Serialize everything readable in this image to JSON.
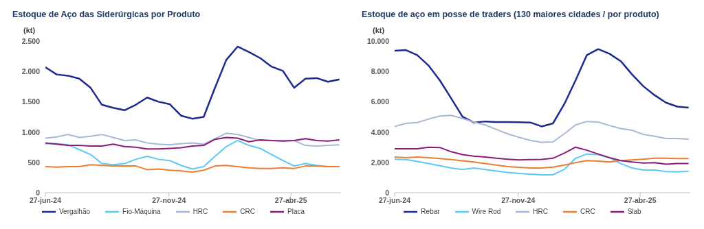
{
  "chart_data": [
    {
      "type": "line",
      "title": "Estoque de Aço das Siderúrgicas por Produto",
      "ylabel": "(kt)",
      "legend": "bottom",
      "grid": false,
      "marker": "none",
      "x": [
        "2024-06-27",
        "2024-07-11",
        "2024-07-25",
        "2024-08-08",
        "2024-08-22",
        "2024-09-05",
        "2024-09-19",
        "2024-10-03",
        "2024-10-17",
        "2024-10-31",
        "2024-11-14",
        "2024-11-28",
        "2024-12-12",
        "2024-12-26",
        "2025-01-09",
        "2025-01-23",
        "2025-02-06",
        "2025-02-20",
        "2025-03-06",
        "2025-03-20",
        "2025-04-03",
        "2025-04-17",
        "2025-05-01",
        "2025-05-15",
        "2025-05-29",
        "2025-06-12",
        "2025-06-26"
      ],
      "xlim": [
        "2024-06-27",
        "2025-06-28"
      ],
      "xticks": [
        {
          "value": "2024-06-27",
          "label": "27-jun-24"
        },
        {
          "value": "2024-11-27",
          "label": "27-nov-24"
        },
        {
          "value": "2025-04-27",
          "label": "27-abr-25"
        }
      ],
      "ylim": [
        0,
        2500
      ],
      "yticks": [
        {
          "value": 0,
          "label": "0"
        },
        {
          "value": 500,
          "label": "500"
        },
        {
          "value": 1000,
          "label": "1.000"
        },
        {
          "value": 1500,
          "label": "1.500"
        },
        {
          "value": 2000,
          "label": "2.000"
        },
        {
          "value": 2500,
          "label": "2.500"
        }
      ],
      "series": [
        {
          "name": "Vergalhão",
          "color": "#1c2a8f",
          "values": [
            2070,
            1950,
            1930,
            1880,
            1730,
            1450,
            1400,
            1360,
            1450,
            1570,
            1500,
            1460,
            1270,
            1220,
            1250,
            1730,
            2190,
            2410,
            2320,
            2220,
            2080,
            2010,
            1730,
            1880,
            1890,
            1830,
            1870
          ]
        },
        {
          "name": "Fio-Máquina",
          "color": "#5bc8f5",
          "values": [
            810,
            810,
            790,
            710,
            630,
            480,
            460,
            480,
            550,
            600,
            550,
            530,
            450,
            390,
            430,
            600,
            760,
            860,
            780,
            730,
            630,
            530,
            440,
            480,
            450,
            430,
            430
          ]
        },
        {
          "name": "HRC",
          "color": "#a6b8d6",
          "values": [
            900,
            920,
            960,
            910,
            930,
            960,
            910,
            860,
            870,
            820,
            800,
            790,
            810,
            820,
            800,
            890,
            980,
            960,
            910,
            860,
            860,
            860,
            860,
            780,
            770,
            780,
            790
          ]
        },
        {
          "name": "CRC",
          "color": "#ed7d31",
          "values": [
            430,
            420,
            430,
            430,
            460,
            450,
            440,
            440,
            440,
            380,
            390,
            370,
            360,
            340,
            370,
            440,
            450,
            430,
            410,
            400,
            400,
            410,
            400,
            440,
            440,
            430,
            430
          ]
        },
        {
          "name": "Placa",
          "color": "#8b1a7a",
          "values": [
            820,
            800,
            780,
            780,
            770,
            770,
            800,
            760,
            750,
            720,
            720,
            730,
            740,
            770,
            780,
            880,
            910,
            900,
            840,
            870,
            860,
            850,
            860,
            890,
            860,
            850,
            870
          ]
        }
      ]
    },
    {
      "type": "line",
      "title": "Estoque de aço em posse de traders (130 maiores cidades / por produto)",
      "ylabel": "(kt)",
      "legend": "bottom",
      "grid": false,
      "marker": "none",
      "x": [
        "2024-06-27",
        "2024-07-11",
        "2024-07-25",
        "2024-08-08",
        "2024-08-22",
        "2024-09-05",
        "2024-09-19",
        "2024-10-03",
        "2024-10-17",
        "2024-10-31",
        "2024-11-14",
        "2024-11-28",
        "2024-12-12",
        "2024-12-26",
        "2025-01-09",
        "2025-01-23",
        "2025-02-06",
        "2025-02-20",
        "2025-03-06",
        "2025-03-20",
        "2025-04-03",
        "2025-04-17",
        "2025-05-01",
        "2025-05-15",
        "2025-05-29",
        "2025-06-12",
        "2025-06-26"
      ],
      "xlim": [
        "2024-06-27",
        "2025-06-28"
      ],
      "xticks": [
        {
          "value": "2024-06-27",
          "label": "27-jun-24"
        },
        {
          "value": "2024-11-27",
          "label": "27-nov-24"
        },
        {
          "value": "2025-04-27",
          "label": "27-abr-25"
        }
      ],
      "ylim": [
        0,
        10000
      ],
      "yticks": [
        {
          "value": 0,
          "label": "0"
        },
        {
          "value": 2000,
          "label": "2.000"
        },
        {
          "value": 4000,
          "label": "4.000"
        },
        {
          "value": 6000,
          "label": "6.000"
        },
        {
          "value": 8000,
          "label": "8.000"
        },
        {
          "value": 10000,
          "label": "10.000"
        }
      ],
      "series": [
        {
          "name": "Rebar",
          "color": "#1c2a8f",
          "values": [
            9370,
            9410,
            9080,
            8390,
            7410,
            6230,
            5020,
            4630,
            4700,
            4660,
            4660,
            4650,
            4630,
            4370,
            4570,
            5840,
            7410,
            9080,
            9470,
            9170,
            8680,
            7800,
            7020,
            6430,
            5940,
            5680,
            5610
          ]
        },
        {
          "name": "Wire Rod",
          "color": "#5bc8f5",
          "values": [
            2210,
            2180,
            2060,
            1920,
            1780,
            1630,
            1530,
            1630,
            1530,
            1430,
            1330,
            1270,
            1220,
            1180,
            1180,
            1530,
            2270,
            2550,
            2510,
            2310,
            1920,
            1630,
            1490,
            1490,
            1390,
            1370,
            1410
          ]
        },
        {
          "name": "HRC",
          "color": "#a6b8d6",
          "values": [
            4370,
            4570,
            4630,
            4860,
            5060,
            5100,
            4900,
            4660,
            4470,
            4170,
            3880,
            3650,
            3450,
            3330,
            3350,
            3880,
            4470,
            4700,
            4660,
            4430,
            4230,
            4120,
            3840,
            3720,
            3570,
            3570,
            3530
          ]
        },
        {
          "name": "CRC",
          "color": "#ed7d31",
          "values": [
            2350,
            2310,
            2350,
            2310,
            2250,
            2180,
            2100,
            2020,
            1920,
            1820,
            1720,
            1670,
            1630,
            1630,
            1690,
            1820,
            1980,
            2120,
            2080,
            2020,
            2120,
            2160,
            2210,
            2270,
            2270,
            2250,
            2250
          ]
        },
        {
          "name": "Slab",
          "color": "#8b1a7a",
          "values": [
            2900,
            2900,
            2900,
            3000,
            2980,
            2700,
            2510,
            2410,
            2350,
            2270,
            2210,
            2160,
            2180,
            2200,
            2270,
            2610,
            3000,
            2800,
            2550,
            2310,
            2120,
            2020,
            1960,
            1980,
            1880,
            1920,
            1920
          ]
        }
      ]
    }
  ]
}
